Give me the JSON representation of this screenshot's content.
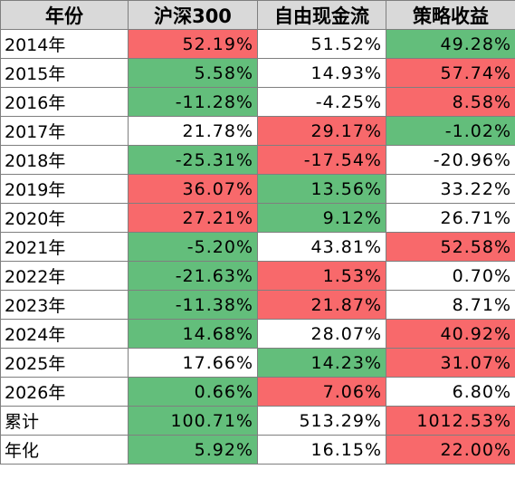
{
  "headers": [
    "年份",
    "沪深300",
    "自由现金流",
    "策略收益"
  ],
  "colors": {
    "red": "#f8696b",
    "green": "#63be7b",
    "white": "#ffffff",
    "header": "#d9d9d9"
  },
  "rows": [
    {
      "year": "2014年",
      "cells": [
        {
          "v": "52.19%",
          "c": "red"
        },
        {
          "v": "51.52%",
          "c": "plain"
        },
        {
          "v": "49.28%",
          "c": "green"
        }
      ]
    },
    {
      "year": "2015年",
      "cells": [
        {
          "v": "5.58%",
          "c": "green"
        },
        {
          "v": "14.93%",
          "c": "plain"
        },
        {
          "v": "57.74%",
          "c": "red"
        }
      ]
    },
    {
      "year": "2016年",
      "cells": [
        {
          "v": "-11.28%",
          "c": "green"
        },
        {
          "v": "-4.25%",
          "c": "plain"
        },
        {
          "v": "8.58%",
          "c": "red"
        }
      ]
    },
    {
      "year": "2017年",
      "cells": [
        {
          "v": "21.78%",
          "c": "plain"
        },
        {
          "v": "29.17%",
          "c": "red"
        },
        {
          "v": "-1.02%",
          "c": "green"
        }
      ]
    },
    {
      "year": "2018年",
      "cells": [
        {
          "v": "-25.31%",
          "c": "green"
        },
        {
          "v": "-17.54%",
          "c": "red"
        },
        {
          "v": "-20.96%",
          "c": "plain"
        }
      ]
    },
    {
      "year": "2019年",
      "cells": [
        {
          "v": "36.07%",
          "c": "red"
        },
        {
          "v": "13.56%",
          "c": "green"
        },
        {
          "v": "33.22%",
          "c": "plain"
        }
      ]
    },
    {
      "year": "2020年",
      "cells": [
        {
          "v": "27.21%",
          "c": "red"
        },
        {
          "v": "9.12%",
          "c": "green"
        },
        {
          "v": "26.71%",
          "c": "plain"
        }
      ]
    },
    {
      "year": "2021年",
      "cells": [
        {
          "v": "-5.20%",
          "c": "green"
        },
        {
          "v": "43.81%",
          "c": "plain"
        },
        {
          "v": "52.58%",
          "c": "red"
        }
      ]
    },
    {
      "year": "2022年",
      "cells": [
        {
          "v": "-21.63%",
          "c": "green"
        },
        {
          "v": "1.53%",
          "c": "red"
        },
        {
          "v": "0.70%",
          "c": "plain"
        }
      ]
    },
    {
      "year": "2023年",
      "cells": [
        {
          "v": "-11.38%",
          "c": "green"
        },
        {
          "v": "21.87%",
          "c": "red"
        },
        {
          "v": "8.71%",
          "c": "plain"
        }
      ]
    },
    {
      "year": "2024年",
      "cells": [
        {
          "v": "14.68%",
          "c": "green"
        },
        {
          "v": "28.07%",
          "c": "plain"
        },
        {
          "v": "40.92%",
          "c": "red"
        }
      ]
    },
    {
      "year": "2025年",
      "cells": [
        {
          "v": "17.66%",
          "c": "plain"
        },
        {
          "v": "14.23%",
          "c": "green"
        },
        {
          "v": "31.07%",
          "c": "red"
        }
      ]
    },
    {
      "year": "2026年",
      "cells": [
        {
          "v": "0.66%",
          "c": "green"
        },
        {
          "v": "7.06%",
          "c": "red"
        },
        {
          "v": "6.80%",
          "c": "plain"
        }
      ]
    },
    {
      "year": "累计",
      "cells": [
        {
          "v": "100.71%",
          "c": "green"
        },
        {
          "v": "513.29%",
          "c": "plain"
        },
        {
          "v": "1012.53%",
          "c": "red"
        }
      ]
    },
    {
      "year": "年化",
      "cells": [
        {
          "v": "5.92%",
          "c": "green"
        },
        {
          "v": "16.15%",
          "c": "plain"
        },
        {
          "v": "22.00%",
          "c": "red"
        }
      ]
    }
  ]
}
